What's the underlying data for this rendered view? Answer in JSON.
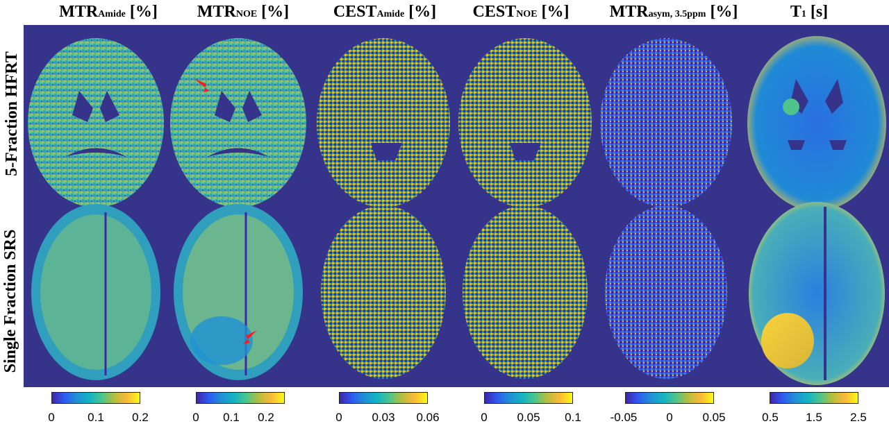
{
  "columns": [
    {
      "main": "MTR",
      "sub": "Amide",
      "unit": "[%]"
    },
    {
      "main": "MTR",
      "sub": "NOE",
      "unit": "[%]"
    },
    {
      "main": "CEST",
      "sub": "Amide",
      "unit": "[%]"
    },
    {
      "main": "CEST",
      "sub": "NOE",
      "unit": "[%]"
    },
    {
      "main": "MTR",
      "sub": "asym, 3.5ppm",
      "unit": "[%]"
    },
    {
      "main": "T",
      "sub": "1",
      "unit": "[s]"
    }
  ],
  "rows": [
    {
      "label": "5-Fraction HFRT"
    },
    {
      "label": "Single Fraction SRS"
    }
  ],
  "colorbars": [
    {
      "ticks": [
        "0",
        "0.1",
        "0.2"
      ]
    },
    {
      "ticks": [
        "0",
        "0.1",
        "0.2"
      ]
    },
    {
      "ticks": [
        "0",
        "0.03",
        "0.06"
      ]
    },
    {
      "ticks": [
        "0",
        "0.05",
        "0.1"
      ]
    },
    {
      "ticks": [
        "-0.05",
        "0",
        "0.05"
      ]
    },
    {
      "ticks": [
        "0.5",
        "1.5",
        "2.5"
      ]
    }
  ],
  "colors": {
    "background": "#35338a",
    "colormap": [
      "#3e26a8",
      "#2f5bf0",
      "#1f92d3",
      "#13b4c3",
      "#4ec48a",
      "#b8bd3c",
      "#fbb938",
      "#f9fb15"
    ],
    "arrow": "#ff1a1a"
  }
}
